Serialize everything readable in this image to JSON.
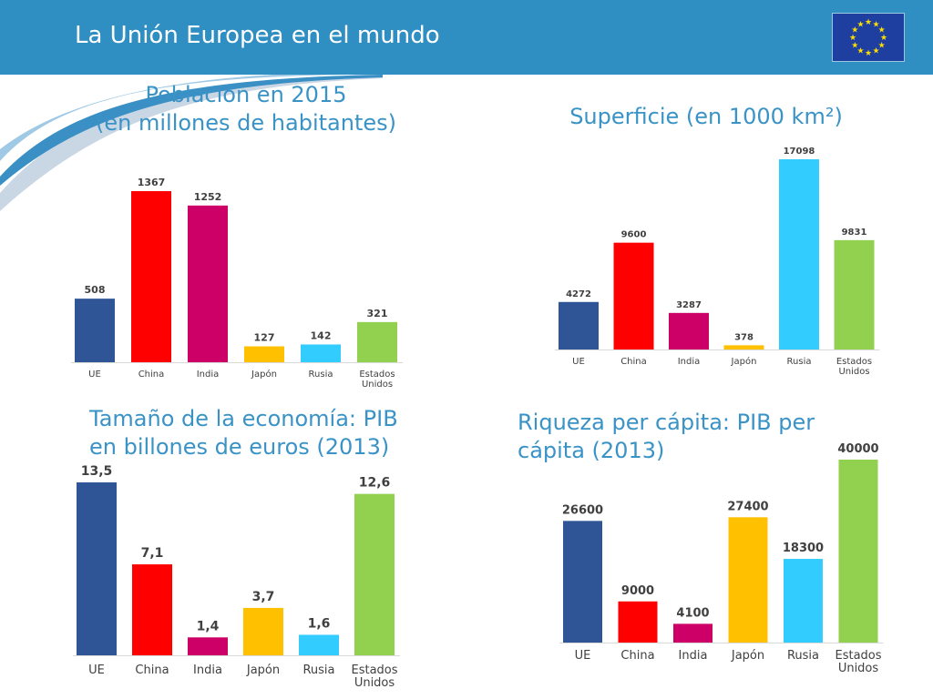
{
  "page": {
    "title": "La Unión Europea en el mundo",
    "flag_icon": "eu-flag-icon"
  },
  "colors": {
    "header": "#2f8ec2",
    "title_text": "#3a93c6",
    "UE": "#2f5597",
    "China": "#ff0000",
    "India": "#cc0066",
    "Japón": "#ffc000",
    "Rusia": "#33ccff",
    "Estados Unidos": "#92d050"
  },
  "chart_data": [
    {
      "type": "bar",
      "title_lines": [
        "Población en 2015",
        "(en millones de habitantes)"
      ],
      "categories": [
        "UE",
        "China",
        "India",
        "Japón",
        "Rusia",
        "Estados Unidos"
      ],
      "values": [
        508,
        1367,
        1252,
        127,
        142,
        321
      ],
      "labels": [
        "508",
        "1367",
        "1252",
        "127",
        "142",
        "321"
      ]
    },
    {
      "type": "bar",
      "title_lines": [
        "Superficie (en 1000 km²)"
      ],
      "categories": [
        "UE",
        "China",
        "India",
        "Japón",
        "Rusia",
        "Estados Unidos"
      ],
      "values": [
        4272,
        9600,
        3287,
        378,
        17098,
        9831
      ],
      "labels": [
        "4272",
        "9600",
        "3287",
        "378",
        "17098",
        "9831"
      ]
    },
    {
      "type": "bar",
      "title_lines": [
        "Tamaño de la economía: PIB",
        "en billones de euros (2013)"
      ],
      "categories": [
        "UE",
        "China",
        "India",
        "Japón",
        "Rusia",
        "Estados Unidos"
      ],
      "values": [
        13.5,
        7.1,
        1.4,
        3.7,
        1.6,
        12.6
      ],
      "labels": [
        "13,5",
        "7,1",
        "1,4",
        "3,7",
        "1,6",
        "12,6"
      ]
    },
    {
      "type": "bar",
      "title_lines": [
        "Riqueza per cápita: PIB per",
        "cápita (2013)"
      ],
      "categories": [
        "UE",
        "China",
        "India",
        "Japón",
        "Rusia",
        "Estados Unidos"
      ],
      "values": [
        26600,
        9000,
        4100,
        27400,
        18300,
        40000
      ],
      "labels": [
        "26600",
        "9000",
        "4100",
        "27400",
        "18300",
        "40000"
      ]
    }
  ]
}
